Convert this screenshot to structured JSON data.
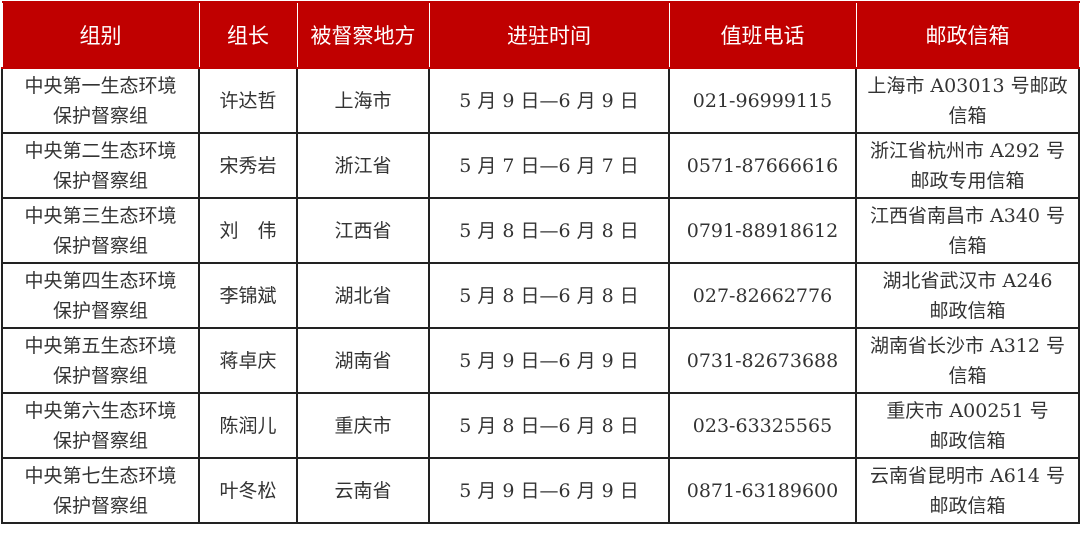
{
  "headers": [
    "组别",
    "组长",
    "被督察地方",
    "进驻时间",
    "值班电话",
    "邮政信箱"
  ],
  "colors": {
    "header_bg": "#c00000",
    "header_text": "#ffffff",
    "text": "#333333"
  },
  "rows": [
    {
      "group": [
        "中央第一生态环境",
        "保护督察组"
      ],
      "leader": "许达哲",
      "place": "上海市",
      "time": "5 月 9 日—6 月 9 日",
      "phone": "021-96999115",
      "mailbox": [
        "上海市 A03013 号邮政",
        "信箱"
      ]
    },
    {
      "group": [
        "中央第二生态环境",
        "保护督察组"
      ],
      "leader": "宋秀岩",
      "place": "浙江省",
      "time": "5 月 7 日—6 月 7 日",
      "phone": "0571-87666616",
      "mailbox": [
        "浙江省杭州市 A292 号",
        "邮政专用信箱"
      ]
    },
    {
      "group": [
        "中央第三生态环境",
        "保护督察组"
      ],
      "leader": "刘　伟",
      "place": "江西省",
      "time": "5 月 8 日—6 月 8 日",
      "phone": "0791-88918612",
      "mailbox": [
        "江西省南昌市 A340 号",
        "信箱"
      ]
    },
    {
      "group": [
        "中央第四生态环境",
        "保护督察组"
      ],
      "leader": "李锦斌",
      "place": "湖北省",
      "time": "5 月 8 日—6 月 8 日",
      "phone": "027-82662776",
      "mailbox": [
        "湖北省武汉市 A246",
        "邮政信箱"
      ]
    },
    {
      "group": [
        "中央第五生态环境",
        "保护督察组"
      ],
      "leader": "蒋卓庆",
      "place": "湖南省",
      "time": "5 月 9 日—6 月 9 日",
      "phone": "0731-82673688",
      "mailbox": [
        "湖南省长沙市 A312 号",
        "信箱"
      ]
    },
    {
      "group": [
        "中央第六生态环境",
        "保护督察组"
      ],
      "leader": "陈润儿",
      "place": "重庆市",
      "time": "5 月 8 日—6 月 8 日",
      "phone": "023-63325565",
      "mailbox": [
        "重庆市 A00251 号",
        "邮政信箱"
      ]
    },
    {
      "group": [
        "中央第七生态环境",
        "保护督察组"
      ],
      "leader": "叶冬松",
      "place": "云南省",
      "time": "5 月 9 日—6 月 9 日",
      "phone": "0871-63189600",
      "mailbox": [
        "云南省昆明市 A614 号",
        "邮政信箱"
      ]
    }
  ]
}
